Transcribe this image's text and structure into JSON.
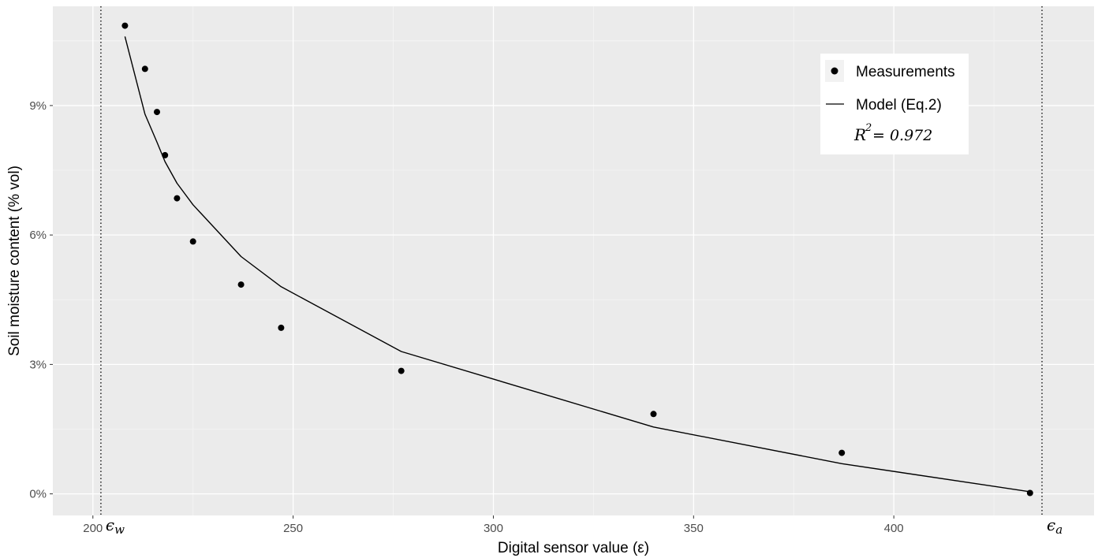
{
  "chart_data": {
    "type": "scatter",
    "xlabel": "Digital sensor value (ε)",
    "ylabel": "Soil moisture content (% vol)",
    "xlim": [
      190,
      450
    ],
    "ylim": [
      -0.5,
      11.3
    ],
    "x_ticks": [
      200,
      250,
      300,
      350,
      400
    ],
    "x_tick_labels": [
      "200",
      "250",
      "300",
      "350",
      "400"
    ],
    "y_ticks": [
      0,
      3,
      6,
      9
    ],
    "y_tick_labels": [
      "0%",
      "3%",
      "6%",
      "9%"
    ],
    "grid": true,
    "legend_position": "top-right",
    "series": [
      {
        "name": "Measurements",
        "kind": "points",
        "color": "#000000",
        "x": [
          208,
          213,
          216,
          218,
          221,
          225,
          237,
          247,
          277,
          340,
          387,
          434
        ],
        "y": [
          10.85,
          9.85,
          8.85,
          7.85,
          6.85,
          5.85,
          4.85,
          3.85,
          2.85,
          1.85,
          0.95,
          0.02
        ]
      },
      {
        "name": "Model (Eq.2)",
        "kind": "line",
        "color": "#000000",
        "x": [
          208,
          213,
          216,
          218,
          221,
          225,
          237,
          247,
          277,
          340,
          387,
          434
        ],
        "y": [
          10.6,
          8.8,
          8.15,
          7.7,
          7.2,
          6.7,
          5.5,
          4.8,
          3.3,
          1.55,
          0.7,
          0.05
        ]
      }
    ],
    "reference_lines": [
      {
        "x": 202,
        "label": "ϵ",
        "subscript": "w",
        "style": "dotted"
      },
      {
        "x": 437,
        "label": "ϵ",
        "subscript": "a",
        "style": "dotted"
      }
    ],
    "annotation": {
      "lhs": "R",
      "exponent": "2",
      "rhs": " = 0.972"
    }
  },
  "colors": {
    "panel_background": "#ebebeb",
    "grid_major": "#ffffff",
    "grid_minor": "#f5f5f5",
    "marks": "#000000"
  }
}
